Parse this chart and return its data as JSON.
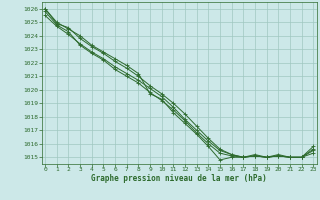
{
  "background_color": "#cce8e8",
  "grid_color": "#a0c8c0",
  "line_color": "#2d6a2d",
  "xlabel": "Graphe pression niveau de la mer (hPa)",
  "ylim": [
    1014.5,
    1026.5
  ],
  "xlim": [
    -0.3,
    23.3
  ],
  "yticks": [
    1015,
    1016,
    1017,
    1018,
    1019,
    1020,
    1021,
    1022,
    1023,
    1024,
    1025,
    1026
  ],
  "xticks": [
    0,
    1,
    2,
    3,
    4,
    5,
    6,
    7,
    8,
    9,
    10,
    11,
    12,
    13,
    14,
    15,
    16,
    17,
    18,
    19,
    20,
    21,
    22,
    23
  ],
  "series": [
    {
      "x": [
        0,
        1,
        2,
        3,
        4,
        5,
        6,
        7,
        8,
        9,
        10,
        11,
        12,
        13,
        14,
        15,
        16,
        17,
        18,
        19,
        20,
        21,
        22,
        23
      ],
      "y": [
        1026.0,
        1025.0,
        1024.5,
        1024.0,
        1023.3,
        1022.8,
        1022.3,
        1021.8,
        1021.2,
        1019.7,
        1019.3,
        1018.3,
        1017.5,
        1016.7,
        1015.8,
        1014.8,
        1015.0,
        1015.0,
        1015.1,
        1015.0,
        1015.1,
        1015.0,
        1015.0,
        1015.3
      ]
    },
    {
      "x": [
        0,
        1,
        2,
        3,
        4,
        5,
        6,
        7,
        8,
        9,
        10,
        11,
        12,
        13,
        14,
        15,
        16,
        17,
        18,
        19,
        20,
        21,
        22,
        23
      ],
      "y": [
        1026.0,
        1024.9,
        1024.6,
        1023.8,
        1023.2,
        1022.7,
        1022.1,
        1021.6,
        1021.0,
        1020.3,
        1019.7,
        1019.0,
        1018.2,
        1017.3,
        1016.4,
        1015.6,
        1015.2,
        1015.0,
        1015.1,
        1015.0,
        1015.1,
        1015.0,
        1015.0,
        1015.6
      ]
    },
    {
      "x": [
        0,
        1,
        2,
        3,
        4,
        5,
        6,
        7,
        8,
        9,
        10,
        11,
        12,
        13,
        14,
        15,
        16,
        17,
        18,
        19,
        20,
        21,
        22,
        23
      ],
      "y": [
        1025.8,
        1024.8,
        1024.3,
        1023.3,
        1022.7,
        1022.2,
        1021.5,
        1021.0,
        1020.5,
        1019.8,
        1019.2,
        1018.5,
        1017.7,
        1016.8,
        1016.0,
        1015.3,
        1015.1,
        1015.0,
        1015.1,
        1015.0,
        1015.1,
        1015.0,
        1015.0,
        1015.5
      ]
    },
    {
      "x": [
        0,
        1,
        2,
        3,
        4,
        5,
        6,
        7,
        8,
        9,
        10,
        11,
        12,
        13,
        14,
        15,
        16,
        17,
        18,
        19,
        20,
        21,
        22,
        23
      ],
      "y": [
        1025.5,
        1024.7,
        1024.1,
        1023.4,
        1022.8,
        1022.3,
        1021.7,
        1021.2,
        1020.7,
        1020.1,
        1019.5,
        1018.7,
        1017.8,
        1017.0,
        1016.2,
        1015.5,
        1015.2,
        1015.0,
        1015.2,
        1015.0,
        1015.2,
        1015.0,
        1015.0,
        1015.8
      ]
    }
  ]
}
